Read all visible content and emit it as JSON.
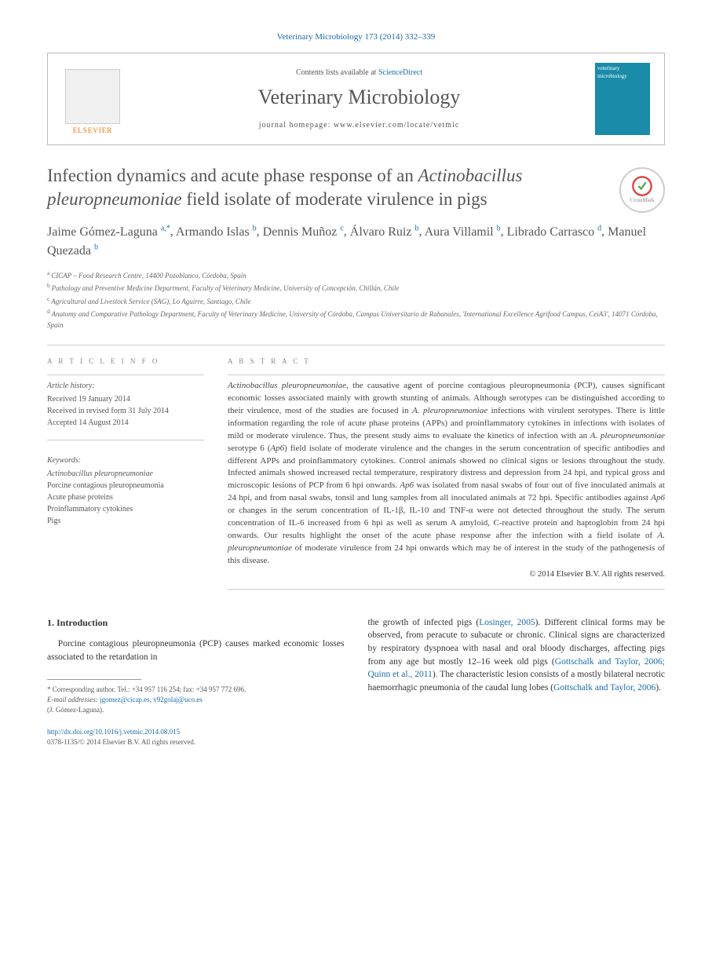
{
  "header": {
    "citation": "Veterinary Microbiology 173 (2014) 332–339",
    "contents_prefix": "Contents lists available at ",
    "contents_link": "ScienceDirect",
    "journal_name": "Veterinary Microbiology",
    "homepage_label": "journal homepage: www.elsevier.com/locate/vetmic",
    "publisher": "ELSEVIER",
    "cover_text": "veterinary microbiology"
  },
  "title": {
    "line1": "Infection dynamics and acute phase response of an ",
    "line2_italic": "Actinobacillus pleuropneumoniae",
    "line3": " field isolate of moderate virulence in pigs"
  },
  "crossmark": "CrossMark",
  "authors": "Jaime Gómez-Laguna",
  "authors_full": [
    {
      "name": "Jaime Gómez-Laguna",
      "aff": "a,*"
    },
    {
      "name": "Armando Islas",
      "aff": "b"
    },
    {
      "name": "Dennis Muñoz",
      "aff": "c"
    },
    {
      "name": "Álvaro Ruiz",
      "aff": "b"
    },
    {
      "name": "Aura Villamil",
      "aff": "b"
    },
    {
      "name": "Librado Carrasco",
      "aff": "d"
    },
    {
      "name": "Manuel Quezada",
      "aff": "b"
    }
  ],
  "affiliations": [
    {
      "key": "a",
      "text": "CICAP – Food Research Centre, 14400 Pozoblanco, Córdoba, Spain"
    },
    {
      "key": "b",
      "text": "Pathology and Preventive Medicine Department, Faculty of Veterinary Medicine, University of Concepción, Chillán, Chile"
    },
    {
      "key": "c",
      "text": "Agricultural and Livestock Service (SAG), Lo Aguirre, Santiago, Chile"
    },
    {
      "key": "d",
      "text": "Anatomy and Comparative Pathology Department, Faculty of Veterinary Medicine, University of Córdoba, Campus Universitario de Rabanales, 'International Excellence Agrifood Campus, CeiA3', 14071 Córdoba, Spain"
    }
  ],
  "article_info": {
    "label": "A R T I C L E   I N F O",
    "history_label": "Article history:",
    "received": "Received 19 January 2014",
    "revised": "Received in revised form 31 July 2014",
    "accepted": "Accepted 14 August 2014"
  },
  "keywords": {
    "label": "Keywords:",
    "items": [
      "Actinobacillus pleuropneumoniae",
      "Porcine contagious pleuropneumonia",
      "Acute phase proteins",
      "Proinflammatory cytokines",
      "Pigs"
    ]
  },
  "abstract": {
    "label": "A B S T R A C T",
    "text_parts": [
      {
        "t": "Actinobacillus pleuropneumoniae",
        "i": true
      },
      {
        "t": ", the causative agent of porcine contagious pleuropneumonia (PCP), causes significant economic losses associated mainly with growth stunting of animals. Although serotypes can be distinguished according to their virulence, most of the studies are focused in "
      },
      {
        "t": "A. pleuropneumoniae",
        "i": true
      },
      {
        "t": " infections with virulent serotypes. There is little information regarding the role of acute phase proteins (APPs) and proinflammatory cytokines in infections with isolates of mild or moderate virulence. Thus, the present study aims to evaluate the kinetics of infection with an "
      },
      {
        "t": "A. pleuropneumoniae",
        "i": true
      },
      {
        "t": " serotype 6 ("
      },
      {
        "t": "Ap6",
        "i": true
      },
      {
        "t": ") field isolate of moderate virulence and the changes in the serum concentration of specific antibodies and different APPs and proinflammatory cytokines. Control animals showed no clinical signs or lesions throughout the study. Infected animals showed increased rectal temperature, respiratory distress and depression from 24 hpi, and typical gross and microscopic lesions of PCP from 6 hpi onwards. "
      },
      {
        "t": "Ap6",
        "i": true
      },
      {
        "t": " was isolated from nasal swabs of four out of five inoculated animals at 24 hpi, and from nasal swabs, tonsil and lung samples from all inoculated animals at 72 hpi. Specific antibodies against "
      },
      {
        "t": "Ap6",
        "i": true
      },
      {
        "t": " or changes in the serum concentration of IL-1β, IL-10 and TNF-α were not detected throughout the study. The serum concentration of IL-6 increased from 6 hpi as well as serum A amyloid, C-reactive protein and haptoglobin from 24 hpi onwards. Our results highlight the onset of the acute phase response after the infection with a field isolate of "
      },
      {
        "t": "A. pleuropneumoniae",
        "i": true
      },
      {
        "t": " of moderate virulence from 24 hpi onwards which may be of interest in the study of the pathogenesis of this disease."
      }
    ],
    "copyright": "© 2014 Elsevier B.V. All rights reserved."
  },
  "introduction": {
    "heading": "1. Introduction",
    "col1": "Porcine contagious pleuropneumonia (PCP) causes marked economic losses associated to the retardation in",
    "col2_p1_pre": "the growth of infected pigs (",
    "col2_p1_link1": "Losinger, 2005",
    "col2_p1_mid1": "). Different clinical forms may be observed, from peracute to subacute or chronic. Clinical signs are characterized by respiratory dyspnoea with nasal and oral bloody discharges, affecting pigs from any age but mostly 12–16 week old pigs (",
    "col2_p1_link2": "Gottschalk and Taylor, 2006; Quinn et al., 2011",
    "col2_p1_mid2": "). The characteristic lesion consists of a mostly bilateral necrotic haemorrhagic pneumonia of the caudal lung lobes (",
    "col2_p1_link3": "Gottschalk and Taylor, 2006",
    "col2_p1_end": ")."
  },
  "footnotes": {
    "corr": "* Corresponding author. Tel.: +34 957 116 254; fax: +34 957 772 696.",
    "email_label": "E-mail addresses: ",
    "email1": "jgomez@cicap.es",
    "email_sep": ", ",
    "email2": "v92golaj@uco.es",
    "author": "(J. Gómez-Laguna)."
  },
  "bottom": {
    "doi": "http://dx.doi.org/10.1016/j.vetmic.2014.08.015",
    "issn_line": "0378-1135/© 2014 Elsevier B.V. All rights reserved."
  },
  "colors": {
    "link": "#1a6ba8",
    "orange": "#ff6b00",
    "cover": "#1a8ba8"
  }
}
